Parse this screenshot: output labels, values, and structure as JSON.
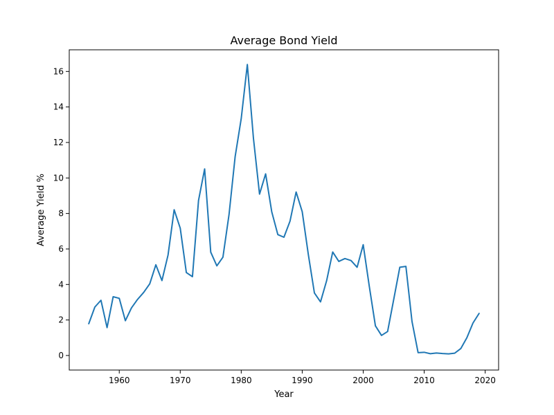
{
  "chart_data": {
    "type": "line",
    "title": "Average Bond Yield",
    "xlabel": "Year",
    "ylabel": "Average Yield %",
    "xlim": [
      1951.8,
      2022.2
    ],
    "ylim": [
      -0.82,
      17.22
    ],
    "xticks": [
      1960,
      1970,
      1980,
      1990,
      2000,
      2010,
      2020
    ],
    "yticks": [
      0,
      2,
      4,
      6,
      8,
      10,
      12,
      14,
      16
    ],
    "grid": false,
    "series": [
      {
        "color": "#1f77b4",
        "x": [
          1955,
          1956,
          1957,
          1958,
          1959,
          1960,
          1961,
          1962,
          1963,
          1964,
          1965,
          1966,
          1967,
          1968,
          1969,
          1970,
          1971,
          1972,
          1973,
          1974,
          1975,
          1976,
          1977,
          1978,
          1979,
          1980,
          1981,
          1982,
          1983,
          1984,
          1985,
          1986,
          1987,
          1988,
          1989,
          1990,
          1991,
          1992,
          1993,
          1994,
          1995,
          1996,
          1997,
          1998,
          1999,
          2000,
          2001,
          2002,
          2003,
          2004,
          2005,
          2006,
          2007,
          2008,
          2009,
          2010,
          2011,
          2012,
          2013,
          2014,
          2015,
          2016,
          2017,
          2018,
          2019
        ],
        "y": [
          1.79,
          2.73,
          3.11,
          1.57,
          3.31,
          3.22,
          1.96,
          2.68,
          3.16,
          3.55,
          4.04,
          5.11,
          4.22,
          5.66,
          8.21,
          7.17,
          4.67,
          4.44,
          8.74,
          10.51,
          5.82,
          5.05,
          5.54,
          7.94,
          11.2,
          13.35,
          16.39,
          12.24,
          9.09,
          10.23,
          8.1,
          6.81,
          6.66,
          7.57,
          9.21,
          8.1,
          5.69,
          3.52,
          3.02,
          4.21,
          5.83,
          5.3,
          5.46,
          5.35,
          4.97,
          6.24,
          3.89,
          1.67,
          1.13,
          1.35,
          3.15,
          4.97,
          5.02,
          1.92,
          0.16,
          0.18,
          0.1,
          0.14,
          0.11,
          0.09,
          0.13,
          0.39,
          1.0,
          1.83,
          2.37
        ]
      }
    ]
  }
}
